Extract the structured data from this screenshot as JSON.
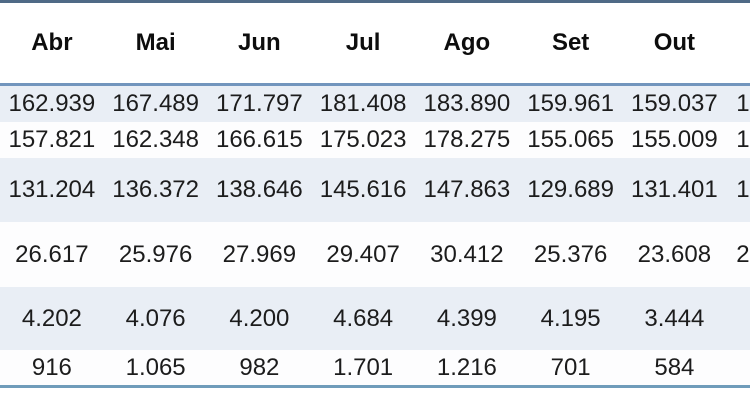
{
  "table": {
    "column_headers": [
      "Abr",
      "Mai",
      "Jun",
      "Jul",
      "Ago",
      "Set",
      "Out"
    ],
    "clipped_column": {
      "header": "",
      "visible_values": [
        "1",
        "1",
        "1",
        "2",
        "",
        ""
      ]
    },
    "rows": [
      [
        "162.939",
        "167.489",
        "171.797",
        "181.408",
        "183.890",
        "159.961",
        "159.037"
      ],
      [
        "157.821",
        "162.348",
        "166.615",
        "175.023",
        "178.275",
        "155.065",
        "155.009"
      ],
      [
        "131.204",
        "136.372",
        "138.646",
        "145.616",
        "147.863",
        "129.689",
        "131.401"
      ],
      [
        "26.617",
        "25.976",
        "27.969",
        "29.407",
        "30.412",
        "25.376",
        "23.608"
      ],
      [
        "4.202",
        "4.076",
        "4.200",
        "4.684",
        "4.399",
        "4.195",
        "3.444"
      ],
      [
        "916",
        "1.065",
        "982",
        "1.701",
        "1.216",
        "701",
        "584"
      ]
    ],
    "colors": {
      "top_border": "#4f6a86",
      "header_underline": "#7295bd",
      "bottom_border": "#6f9cba",
      "band_fill": "#e9eef5",
      "header_text": "#0d0d0d",
      "cell_text": "#1c1c1c"
    }
  }
}
